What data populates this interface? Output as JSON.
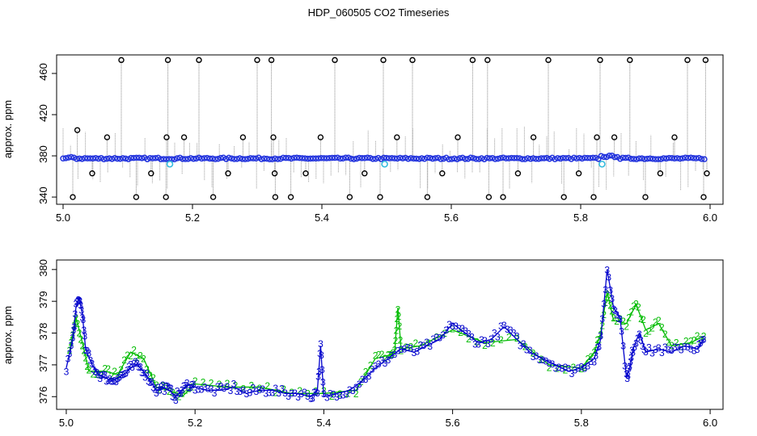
{
  "title": "HDP_060505  CO2 Timeseries",
  "chart_data": [
    {
      "type": "scatter",
      "title": "",
      "xlabel": "",
      "ylabel": "approx. ppm",
      "xlim": [
        0.995,
        1.005
      ],
      "ylim": [
        333,
        478
      ],
      "x_ticks": [
        "5.0",
        "5.2",
        "5.4",
        "5.6",
        "5.8",
        "6.0"
      ],
      "x_tick_values": [
        5.0,
        5.2,
        5.4,
        5.6,
        5.8,
        6.0
      ],
      "y_ticks": [
        "340",
        "380",
        "420",
        "460"
      ],
      "y_tick_values": [
        340,
        380,
        420,
        460
      ],
      "xlim_data": [
        4.99,
        6.02
      ],
      "ylim_data": [
        333,
        478
      ],
      "baseline": {
        "x_start": 5.0,
        "x_end": 5.995,
        "value": 377.5
      },
      "dip_points": [
        {
          "x": 5.165,
          "y": 372
        },
        {
          "x": 5.497,
          "y": 372
        },
        {
          "x": 5.833,
          "y": 372
        }
      ],
      "outliers_x": [
        5.015,
        5.022,
        5.045,
        5.068,
        5.09,
        5.113,
        5.136,
        5.159,
        5.16,
        5.162,
        5.187,
        5.21,
        5.232,
        5.255,
        5.278,
        5.3,
        5.322,
        5.325,
        5.327,
        5.328,
        5.352,
        5.375,
        5.398,
        5.42,
        5.443,
        5.466,
        5.49,
        5.495,
        5.516,
        5.54,
        5.563,
        5.586,
        5.61,
        5.633,
        5.656,
        5.658,
        5.68,
        5.703,
        5.727,
        5.75,
        5.774,
        5.797,
        5.82,
        5.825,
        5.83,
        5.852,
        5.876,
        5.9,
        5.923,
        5.945,
        5.965,
        5.99,
        5.993,
        5.995
      ],
      "outliers_y": [
        340,
        405,
        363,
        398,
        473,
        340,
        363,
        340,
        398,
        473,
        398,
        473,
        340,
        363,
        398,
        473,
        473,
        398,
        363,
        340,
        340,
        363,
        398,
        473,
        340,
        363,
        340,
        473,
        398,
        473,
        340,
        363,
        398,
        473,
        473,
        340,
        340,
        363,
        398,
        473,
        340,
        363,
        340,
        398,
        473,
        398,
        473,
        340,
        363,
        398,
        473,
        340,
        473,
        363
      ]
    },
    {
      "type": "line",
      "title": "",
      "xlabel": "",
      "ylabel": "approx. ppm",
      "x_ticks": [
        "5.0",
        "5.2",
        "5.4",
        "5.6",
        "5.8",
        "6.0"
      ],
      "x_tick_values": [
        5.0,
        5.2,
        5.4,
        5.6,
        5.8,
        6.0
      ],
      "y_ticks": [
        "376",
        "377",
        "378",
        "379",
        "380"
      ],
      "y_tick_values": [
        376,
        377,
        378,
        379,
        380
      ],
      "xlim": [
        4.985,
        6.02
      ],
      "ylim": [
        375.6,
        380.3
      ],
      "series": [
        {
          "name": "3",
          "color": "#0000cc",
          "x": [
            5.0,
            5.01,
            5.015,
            5.02,
            5.025,
            5.03,
            5.04,
            5.05,
            5.06,
            5.07,
            5.08,
            5.09,
            5.1,
            5.11,
            5.12,
            5.13,
            5.14,
            5.15,
            5.16,
            5.17,
            5.18,
            5.19,
            5.2,
            5.22,
            5.24,
            5.26,
            5.28,
            5.3,
            5.32,
            5.34,
            5.36,
            5.38,
            5.39,
            5.395,
            5.4,
            5.42,
            5.44,
            5.46,
            5.48,
            5.5,
            5.52,
            5.54,
            5.56,
            5.58,
            5.6,
            5.62,
            5.64,
            5.66,
            5.68,
            5.7,
            5.72,
            5.74,
            5.76,
            5.78,
            5.8,
            5.82,
            5.83,
            5.84,
            5.85,
            5.86,
            5.87,
            5.875,
            5.88,
            5.89,
            5.9,
            5.92,
            5.94,
            5.96,
            5.98,
            5.99
          ],
          "y": [
            376.9,
            377.8,
            378.8,
            379.1,
            378.6,
            377.5,
            377.0,
            376.7,
            376.6,
            376.5,
            376.6,
            376.7,
            376.9,
            377.0,
            376.8,
            376.5,
            376.2,
            376.3,
            376.2,
            376.0,
            376.2,
            376.4,
            376.3,
            376.2,
            376.2,
            376.3,
            376.1,
            376.2,
            376.2,
            376.1,
            376.1,
            376.0,
            376.2,
            377.6,
            376.0,
            376.1,
            376.2,
            376.5,
            376.9,
            377.2,
            377.5,
            377.4,
            377.6,
            377.8,
            378.3,
            378.0,
            377.7,
            377.8,
            378.2,
            377.8,
            377.4,
            377.2,
            377.0,
            376.8,
            376.9,
            377.2,
            377.8,
            380.0,
            378.8,
            378.5,
            376.6,
            376.9,
            377.5,
            378.0,
            377.4,
            377.5,
            377.4,
            377.6,
            377.5,
            377.8
          ]
        },
        {
          "name": "2",
          "color": "#00bb00",
          "x": [
            5.005,
            5.015,
            5.025,
            5.035,
            5.06,
            5.08,
            5.1,
            5.12,
            5.14,
            5.16,
            5.18,
            5.2,
            5.25,
            5.3,
            5.35,
            5.4,
            5.45,
            5.48,
            5.5,
            5.51,
            5.515,
            5.52,
            5.55,
            5.6,
            5.65,
            5.7,
            5.75,
            5.8,
            5.82,
            5.83,
            5.84,
            5.85,
            5.87,
            5.885,
            5.9,
            5.92,
            5.94,
            5.97,
            5.99
          ],
          "y": [
            377.4,
            378.5,
            377.7,
            376.8,
            376.8,
            376.7,
            377.4,
            377.2,
            376.3,
            376.2,
            376.0,
            376.4,
            376.3,
            376.3,
            376.1,
            376.1,
            376.2,
            377.2,
            377.3,
            377.4,
            378.8,
            377.5,
            377.6,
            378.1,
            377.7,
            377.8,
            377.0,
            376.9,
            377.4,
            378.0,
            379.3,
            378.4,
            378.3,
            378.9,
            378.1,
            378.3,
            377.6,
            377.7,
            377.9
          ]
        }
      ]
    }
  ]
}
